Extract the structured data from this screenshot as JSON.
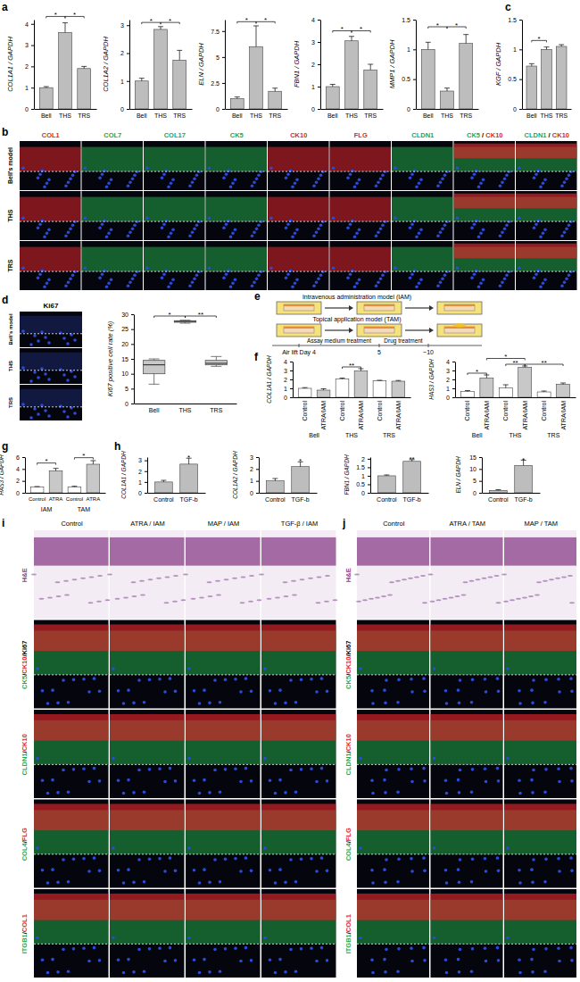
{
  "chart_data": [
    {
      "type": "bar",
      "ylabel": "COL1A1 / GAPDH",
      "categories": [
        "Bell",
        "THS",
        "TRS"
      ],
      "values": [
        1.0,
        3.6,
        1.9
      ],
      "errors": [
        0.05,
        0.45,
        0.1
      ],
      "ylim": [
        0,
        4.2
      ],
      "yticks": [
        0,
        1,
        2,
        3,
        4
      ],
      "color": "#bdbdbd",
      "significance": [
        {
          "pair": [
            0,
            1
          ],
          "label": "*",
          "y": 4.35
        },
        {
          "pair": [
            1,
            2
          ],
          "label": "*",
          "y": 4.35
        }
      ]
    },
    {
      "type": "bar",
      "ylabel": "COL1A2 / GAPDH",
      "categories": [
        "Bell",
        "THS",
        "TRS"
      ],
      "values": [
        1.0,
        2.85,
        1.75
      ],
      "errors": [
        0.1,
        0.1,
        0.35
      ],
      "ylim": [
        0,
        3.2
      ],
      "yticks": [
        0,
        1,
        2,
        3
      ],
      "color": "#bdbdbd",
      "significance": [
        {
          "pair": [
            0,
            1
          ],
          "label": "*",
          "y": 3.1
        },
        {
          "pair": [
            1,
            2
          ],
          "label": "*",
          "y": 3.1
        }
      ]
    },
    {
      "type": "bar",
      "ylabel": "ELN / GAPDH",
      "categories": [
        "Bell",
        "THS",
        "TRS"
      ],
      "values": [
        1.0,
        6.0,
        1.7
      ],
      "errors": [
        0.15,
        2.0,
        0.3
      ],
      "ylim": [
        0,
        8.6
      ],
      "yticks": [
        0,
        2.5,
        5,
        7.5
      ],
      "color": "#bdbdbd",
      "significance": [
        {
          "pair": [
            0,
            1
          ],
          "label": "*",
          "y": 8.4
        },
        {
          "pair": [
            1,
            2
          ],
          "label": "*",
          "y": 8.4
        }
      ]
    },
    {
      "type": "bar",
      "ylabel": "FBN1 / GAPDH",
      "categories": [
        "Bell",
        "THS",
        "TRS"
      ],
      "values": [
        1.0,
        3.05,
        1.75
      ],
      "errors": [
        0.1,
        0.2,
        0.25
      ],
      "ylim": [
        0,
        4
      ],
      "yticks": [
        0,
        1,
        2,
        3,
        4
      ],
      "color": "#bdbdbd",
      "significance": [
        {
          "pair": [
            0,
            1
          ],
          "label": "*",
          "y": 3.5
        },
        {
          "pair": [
            1,
            2
          ],
          "label": "*",
          "y": 3.5
        }
      ]
    },
    {
      "type": "bar",
      "ylabel": "MMP1 / GAPDH",
      "categories": [
        "Bell",
        "THS",
        "TRS"
      ],
      "values": [
        1.0,
        0.3,
        1.1
      ],
      "errors": [
        0.12,
        0.05,
        0.15
      ],
      "ylim": [
        0,
        1.5
      ],
      "yticks": [
        0,
        0.5,
        1,
        1.5
      ],
      "color": "#bdbdbd",
      "significance": [
        {
          "pair": [
            0,
            1
          ],
          "label": "*",
          "y": 1.38
        },
        {
          "pair": [
            1,
            2
          ],
          "label": "*",
          "y": 1.38
        }
      ]
    },
    {
      "type": "bar",
      "ylabel": "KGF / GAPDH",
      "categories": [
        "Bell",
        "THS",
        "TRS"
      ],
      "values": [
        0.72,
        1.0,
        1.05
      ],
      "errors": [
        0.04,
        0.04,
        0.03
      ],
      "ylim": [
        0,
        1.5
      ],
      "yticks": [
        0,
        0.5,
        1,
        1.5
      ],
      "color": "#bdbdbd",
      "significance": [
        {
          "pair": [
            0,
            1
          ],
          "label": "*",
          "y": 1.15
        }
      ]
    },
    {
      "type": "box",
      "ylabel": "Ki67 positive cell rate (%)",
      "categories": [
        "Bell",
        "THS",
        "TRS"
      ],
      "stats": [
        {
          "min": 6.5,
          "q1": 10,
          "median": 13,
          "q3": 14.5,
          "max": 15
        },
        {
          "min": 27,
          "q1": 27.3,
          "median": 27.6,
          "q3": 27.8,
          "max": 28
        },
        {
          "min": 12.5,
          "q1": 13,
          "median": 13.5,
          "q3": 14.5,
          "max": 15.8
        }
      ],
      "ylim": [
        0,
        30
      ],
      "yticks": [
        0,
        5,
        10,
        15,
        20,
        25,
        30
      ],
      "color": "#c8c8c8",
      "significance": [
        {
          "pair": [
            0,
            1
          ],
          "label": "*",
          "y": 29.4
        },
        {
          "pair": [
            1,
            2
          ],
          "label": "**",
          "y": 29.4
        }
      ]
    },
    {
      "type": "bar",
      "ylabel": "COL1A1 / GAPDH",
      "categories": [
        "Control",
        "ATRA/IAM",
        "Control",
        "ATRA/IAM",
        "Control",
        "ATRA/IAM"
      ],
      "groups": [
        "Bell",
        "THS",
        "TRS"
      ],
      "values": [
        1.0,
        0.8,
        2.05,
        2.95,
        1.85,
        1.8
      ],
      "errors": [
        0.08,
        0.15,
        0.1,
        0.25,
        0.05,
        0.08
      ],
      "ylim": [
        0,
        4
      ],
      "yticks": [
        0,
        1,
        2,
        3,
        4
      ],
      "colors": [
        "#ffffff",
        "#c8c8c8",
        "#ffffff",
        "#c8c8c8",
        "#ffffff",
        "#c8c8c8"
      ],
      "significance": [
        {
          "pair": [
            2,
            3
          ],
          "label": "**",
          "y": 3.4
        }
      ]
    },
    {
      "type": "bar",
      "ylabel": "HAS3 / GAPDH",
      "categories": [
        "Control",
        "ATRA/IAM",
        "Control",
        "ATRA/IAM",
        "Control",
        "ATRA/IAM"
      ],
      "groups": [
        "Bell",
        "THS",
        "TRS"
      ],
      "values": [
        0.65,
        2.15,
        1.05,
        3.35,
        0.6,
        1.45
      ],
      "errors": [
        0.1,
        0.35,
        0.35,
        0.15,
        0.1,
        0.15
      ],
      "ylim": [
        0,
        4
      ],
      "yticks": [
        0,
        1,
        2,
        3,
        4
      ],
      "colors": [
        "#ffffff",
        "#c8c8c8",
        "#ffffff",
        "#c8c8c8",
        "#ffffff",
        "#c8c8c8"
      ],
      "significance": [
        {
          "pair": [
            0,
            1
          ],
          "label": "*",
          "y": 2.7
        },
        {
          "pair": [
            1,
            3
          ],
          "label": "*",
          "y": 4.35
        },
        {
          "pair": [
            2,
            3
          ],
          "label": "**",
          "y": 3.7
        },
        {
          "pair": [
            3,
            5
          ],
          "label": "**",
          "y": 3.7
        }
      ]
    },
    {
      "type": "bar",
      "ylabel": "HAS3 / GAPDH",
      "categories": [
        "Control",
        "ATRA",
        "Control",
        "ATRA"
      ],
      "groups": [
        "IAM",
        "TAM"
      ],
      "values": [
        1.0,
        3.7,
        1.0,
        4.8
      ],
      "errors": [
        0.05,
        0.4,
        0.1,
        0.6
      ],
      "ylim": [
        0,
        6
      ],
      "yticks": [
        0,
        2,
        4,
        6
      ],
      "colors": [
        "#ffffff",
        "#c8c8c8",
        "#ffffff",
        "#c8c8c8"
      ],
      "significance": [
        {
          "pair": [
            0,
            1
          ],
          "label": "*",
          "y": 5.0
        },
        {
          "pair": [
            2,
            3
          ],
          "label": "*",
          "y": 5.9
        }
      ]
    },
    {
      "type": "bar",
      "ylabel": "COL1A1 / GAPDH",
      "categories": [
        "Control",
        "TGF-b"
      ],
      "values": [
        1.0,
        2.65
      ],
      "errors": [
        0.15,
        0.55
      ],
      "ylim": [
        0,
        3.3
      ],
      "yticks": [
        0,
        1,
        2,
        3
      ],
      "color": "#bdbdbd",
      "significance": [
        {
          "pair": [
            1,
            1
          ],
          "label": "*",
          "y": 3.3
        }
      ]
    },
    {
      "type": "bar",
      "ylabel": "COL1A2 / GAPDH",
      "categories": [
        "Control",
        "TGF-b"
      ],
      "values": [
        1.0,
        2.2
      ],
      "errors": [
        0.2,
        0.4
      ],
      "ylim": [
        0,
        3
      ],
      "yticks": [
        0,
        1,
        2,
        3
      ],
      "color": "#bdbdbd",
      "significance": [
        {
          "pair": [
            1,
            1
          ],
          "label": "*",
          "y": 2.7
        }
      ]
    },
    {
      "type": "bar",
      "ylabel": "FBN1 / GAPDH",
      "categories": [
        "Control",
        "TGF-b"
      ],
      "values": [
        1.0,
        1.85
      ],
      "errors": [
        0.05,
        0.1
      ],
      "ylim": [
        0,
        2.1
      ],
      "yticks": [
        0,
        0.5,
        1,
        1.5,
        2
      ],
      "color": "#bdbdbd",
      "significance": [
        {
          "pair": [
            1,
            1
          ],
          "label": "**",
          "y": 2.0
        }
      ]
    },
    {
      "type": "bar",
      "ylabel": "ELN / GAPDH",
      "categories": [
        "Control",
        "TGF-b"
      ],
      "values": [
        1.0,
        11.5
      ],
      "errors": [
        0.3,
        2.2
      ],
      "ylim": [
        0,
        15
      ],
      "yticks": [
        0,
        5,
        10,
        15
      ],
      "color": "#bdbdbd",
      "significance": [
        {
          "pair": [
            1,
            1
          ],
          "label": "*",
          "y": 14.0
        }
      ]
    }
  ],
  "figure": {
    "panel_labels": [
      "a",
      "b",
      "c",
      "d",
      "e",
      "f",
      "g",
      "h",
      "i",
      "j"
    ],
    "b": {
      "rows": [
        "Bell's model",
        "THS",
        "TRS"
      ],
      "columns": [
        {
          "label": "COL1",
          "colors": [
            "#e0262b"
          ]
        },
        {
          "label": "COL7",
          "colors": [
            "#22a84a"
          ]
        },
        {
          "label": "COL17",
          "colors": [
            "#22a84a"
          ]
        },
        {
          "label": "CK5",
          "colors": [
            "#22a84a"
          ]
        },
        {
          "label": "CK10",
          "colors": [
            "#e0262b"
          ]
        },
        {
          "label": "FLG",
          "colors": [
            "#e0262b"
          ]
        },
        {
          "label": "CLDN1",
          "colors": [
            "#22a84a"
          ]
        },
        {
          "label": "CK5 / CK10",
          "colors": [
            "#22a84a",
            "#e0262b"
          ]
        },
        {
          "label": "CLDN1 / CK10",
          "colors": [
            "#22a84a",
            "#e0262b"
          ]
        }
      ]
    },
    "d": {
      "header": "Ki67",
      "rows": [
        "Bell's model",
        "THS",
        "TRS"
      ]
    },
    "e": {
      "iam": "Intravenous administration model (IAM)",
      "tam": "Topical application model (TAM)",
      "timeline": [
        "Air lift Day 4",
        "5",
        "~10"
      ],
      "phases": [
        "Assay medium treatment",
        "Drug treatment"
      ]
    },
    "i": {
      "columns": [
        "Control",
        "ATRA / IAM",
        "MAP / IAM",
        "TGF-β / IAM"
      ],
      "rows": [
        {
          "label": "H&E",
          "colors": [
            "#8a3f88"
          ]
        },
        {
          "label": "CK5/CK10/Ki67",
          "colors": [
            "#22a84a",
            "#e0262b",
            "#000000"
          ]
        },
        {
          "label": "CLDN1/CK10",
          "colors": [
            "#22a84a",
            "#e0262b"
          ]
        },
        {
          "label": "COL4/FLG",
          "colors": [
            "#22a84a",
            "#e0262b"
          ]
        },
        {
          "label": "ITGB1/COL1",
          "colors": [
            "#22a84a",
            "#e0262b"
          ]
        }
      ]
    },
    "j": {
      "columns": [
        "Control",
        "ATRA / TAM",
        "MAP / TAM"
      ],
      "rows": [
        {
          "label": "H&E",
          "colors": [
            "#8a3f88"
          ]
        },
        {
          "label": "CK5/CK10/Ki67",
          "colors": [
            "#22a84a",
            "#e0262b",
            "#000000"
          ]
        },
        {
          "label": "CLDN1/CK10",
          "colors": [
            "#22a84a",
            "#e0262b"
          ]
        },
        {
          "label": "COL4/FLG",
          "colors": [
            "#22a84a",
            "#e0262b"
          ]
        },
        {
          "label": "ITGB1/COL1",
          "colors": [
            "#22a84a",
            "#e0262b"
          ]
        }
      ]
    }
  }
}
